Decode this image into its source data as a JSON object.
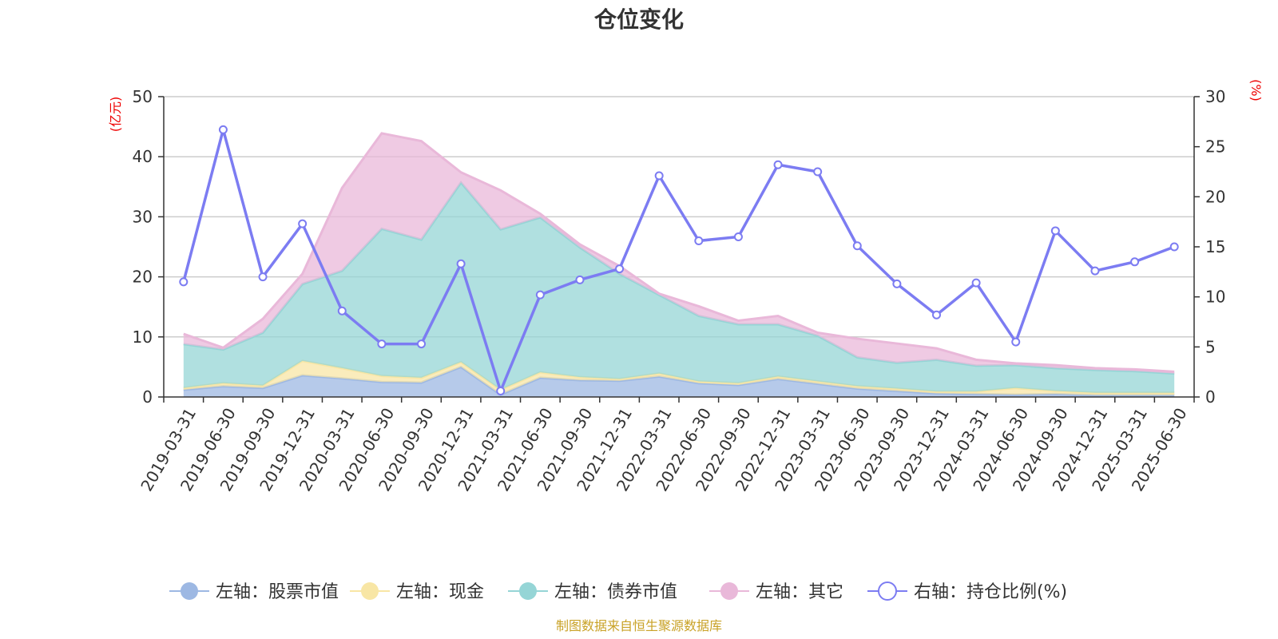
{
  "chart_data": {
    "type": "area",
    "title": "仓位变化",
    "source_note": "制图数据来自恒生聚源数据库",
    "left_axis": {
      "unit": "(亿元)",
      "range": [
        0,
        50
      ],
      "ticks": [
        0,
        10,
        20,
        30,
        40,
        50
      ]
    },
    "right_axis": {
      "unit": "(%)",
      "range": [
        0,
        30
      ],
      "ticks": [
        0,
        5,
        10,
        15,
        20,
        25,
        30
      ]
    },
    "grid": true,
    "legend_position": "bottom",
    "categories": [
      "2019-03-31",
      "2019-06-30",
      "2019-09-30",
      "2019-12-31",
      "2020-03-31",
      "2020-06-30",
      "2020-09-30",
      "2020-12-31",
      "2021-03-31",
      "2021-06-30",
      "2021-09-30",
      "2021-12-31",
      "2022-03-31",
      "2022-06-30",
      "2022-09-30",
      "2022-12-31",
      "2023-03-31",
      "2023-06-30",
      "2023-09-30",
      "2023-12-31",
      "2024-03-31",
      "2024-06-30",
      "2024-09-30",
      "2024-12-31",
      "2025-03-31",
      "2025-06-30"
    ],
    "stack_series": [
      {
        "name": "左轴：股票市值",
        "axis": "left",
        "color": "#9db8e3",
        "values": [
          1.2,
          1.8,
          1.5,
          3.6,
          3.1,
          2.5,
          2.4,
          5.0,
          0.4,
          3.2,
          2.8,
          2.7,
          3.4,
          2.3,
          2.0,
          3.0,
          2.2,
          1.4,
          1.0,
          0.6,
          0.5,
          0.4,
          0.5,
          0.3,
          0.3,
          0.3
        ]
      },
      {
        "name": "左轴：现金",
        "axis": "left",
        "color": "#f8e6a5",
        "values": [
          0.3,
          0.5,
          0.4,
          2.4,
          1.7,
          1.0,
          0.8,
          0.8,
          0.8,
          0.9,
          0.5,
          0.3,
          0.5,
          0.3,
          0.3,
          0.4,
          0.4,
          0.4,
          0.4,
          0.3,
          0.4,
          1.1,
          0.5,
          0.4,
          0.4,
          0.4
        ]
      },
      {
        "name": "左轴：债券市值",
        "axis": "left",
        "color": "#95d5d6",
        "values": [
          7.3,
          5.6,
          8.8,
          12.8,
          16.2,
          24.5,
          23.0,
          29.9,
          26.7,
          25.8,
          21.6,
          17.5,
          13.1,
          10.9,
          9.8,
          8.7,
          7.6,
          4.8,
          4.3,
          5.3,
          4.3,
          3.8,
          3.8,
          3.8,
          3.6,
          3.2
        ]
      },
      {
        "name": "左轴：其它",
        "axis": "left",
        "color": "#e9b8d9",
        "values": [
          1.7,
          0.3,
          2.3,
          1.7,
          13.8,
          15.9,
          16.4,
          1.7,
          6.5,
          0.6,
          0.5,
          1.3,
          0.2,
          1.6,
          0.6,
          1.4,
          0.5,
          3.1,
          3.2,
          1.9,
          1.0,
          0.3,
          0.5,
          0.3,
          0.3,
          0.3
        ]
      }
    ],
    "line_series": {
      "name": "右轴：持仓比例(%)",
      "axis": "right",
      "color": "#7c7cf2",
      "values": [
        11.5,
        26.7,
        12.0,
        17.3,
        8.6,
        5.3,
        5.3,
        13.3,
        0.6,
        10.2,
        11.7,
        12.8,
        22.1,
        15.6,
        16.0,
        23.2,
        22.5,
        15.1,
        11.3,
        8.2,
        11.4,
        5.5,
        16.6,
        12.6,
        13.5,
        15.0
      ]
    }
  }
}
